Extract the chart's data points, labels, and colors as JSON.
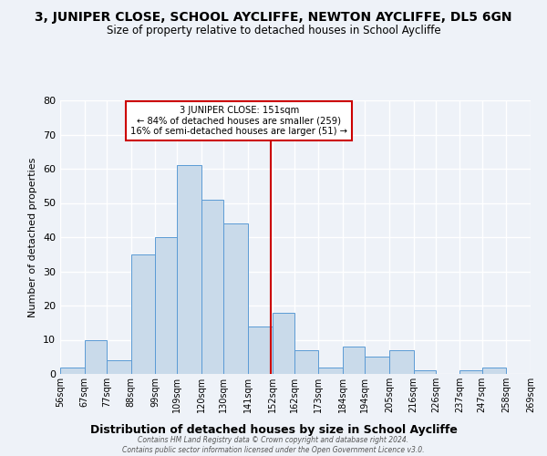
{
  "title": "3, JUNIPER CLOSE, SCHOOL AYCLIFFE, NEWTON AYCLIFFE, DL5 6GN",
  "subtitle": "Size of property relative to detached houses in School Aycliffe",
  "xlabel": "Distribution of detached houses by size in School Aycliffe",
  "ylabel": "Number of detached properties",
  "footer_line1": "Contains HM Land Registry data © Crown copyright and database right 2024.",
  "footer_line2": "Contains public sector information licensed under the Open Government Licence v3.0.",
  "bin_edges": [
    56,
    67,
    77,
    88,
    99,
    109,
    120,
    130,
    141,
    152,
    162,
    173,
    184,
    194,
    205,
    216,
    226,
    237,
    247,
    258,
    269
  ],
  "bin_labels": [
    "56sqm",
    "67sqm",
    "77sqm",
    "88sqm",
    "99sqm",
    "109sqm",
    "120sqm",
    "130sqm",
    "141sqm",
    "152sqm",
    "162sqm",
    "173sqm",
    "184sqm",
    "194sqm",
    "205sqm",
    "216sqm",
    "226sqm",
    "237sqm",
    "247sqm",
    "258sqm",
    "269sqm"
  ],
  "counts": [
    2,
    10,
    4,
    35,
    40,
    61,
    51,
    44,
    14,
    18,
    7,
    2,
    8,
    5,
    7,
    1,
    0,
    1,
    2,
    0
  ],
  "bar_color": "#c9daea",
  "bar_edge_color": "#5b9bd5",
  "vline_x": 151.5,
  "vline_color": "#cc0000",
  "annotation_title": "3 JUNIPER CLOSE: 151sqm",
  "annotation_line2": "← 84% of detached houses are smaller (259)",
  "annotation_line3": "16% of semi-detached houses are larger (51) →",
  "annotation_box_color": "#cc0000",
  "ylim": [
    0,
    80
  ],
  "yticks": [
    0,
    10,
    20,
    30,
    40,
    50,
    60,
    70,
    80
  ],
  "background_color": "#eef2f8",
  "grid_color": "#ffffff",
  "title_fontsize": 10,
  "subtitle_fontsize": 8.5
}
